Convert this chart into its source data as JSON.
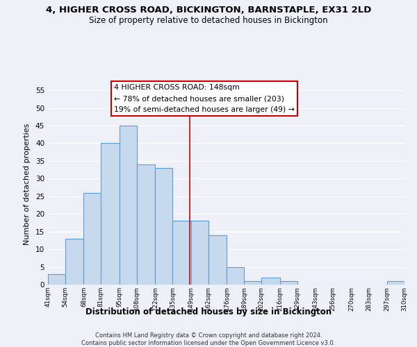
{
  "title": "4, HIGHER CROSS ROAD, BICKINGTON, BARNSTAPLE, EX31 2LD",
  "subtitle": "Size of property relative to detached houses in Bickington",
  "xlabel": "Distribution of detached houses by size in Bickington",
  "ylabel": "Number of detached properties",
  "bar_edges": [
    41,
    54,
    68,
    81,
    95,
    108,
    122,
    135,
    149,
    162,
    176,
    189,
    202,
    216,
    229,
    243,
    256,
    270,
    283,
    297,
    310
  ],
  "bar_heights": [
    3,
    13,
    26,
    40,
    45,
    34,
    33,
    18,
    18,
    14,
    5,
    1,
    2,
    1,
    0,
    0,
    0,
    0,
    0,
    1
  ],
  "bar_color": "#c7d9ed",
  "bar_edge_color": "#5b9bd5",
  "property_line_x": 148,
  "ylim": [
    0,
    57
  ],
  "yticks": [
    0,
    5,
    10,
    15,
    20,
    25,
    30,
    35,
    40,
    45,
    50,
    55
  ],
  "annotation_title": "4 HIGHER CROSS ROAD: 148sqm",
  "annotation_line1": "← 78% of detached houses are smaller (203)",
  "annotation_line2": "19% of semi-detached houses are larger (49) →",
  "annotation_box_color": "#ffffff",
  "annotation_box_edge_color": "#cc0000",
  "footer1": "Contains HM Land Registry data © Crown copyright and database right 2024.",
  "footer2": "Contains public sector information licensed under the Open Government Licence v3.0.",
  "tick_labels": [
    "41sqm",
    "54sqm",
    "68sqm",
    "81sqm",
    "95sqm",
    "108sqm",
    "122sqm",
    "135sqm",
    "149sqm",
    "162sqm",
    "176sqm",
    "189sqm",
    "202sqm",
    "216sqm",
    "229sqm",
    "243sqm",
    "256sqm",
    "270sqm",
    "283sqm",
    "297sqm",
    "310sqm"
  ],
  "background_color": "#edf1f7"
}
